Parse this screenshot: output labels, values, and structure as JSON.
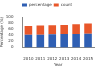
{
  "chart_data": {
    "type": "bar",
    "stacked": true,
    "x_label": "Year",
    "y_label": "Percentage (%)",
    "categories": [
      "2010",
      "2011",
      "2012",
      "2013",
      "2014",
      "2015"
    ],
    "series": [
      {
        "name": "percentage",
        "color": "#2f5fb3",
        "values": [
          42,
          42,
          43,
          44,
          44,
          45
        ]
      },
      {
        "name": "count",
        "color": "#e8572a",
        "values": [
          28,
          30,
          30,
          30,
          32,
          34
        ]
      }
    ],
    "ylim": [
      0,
      100
    ],
    "yticks": [
      0,
      20,
      40,
      60,
      80,
      100
    ],
    "grid": false,
    "legend": "top"
  }
}
